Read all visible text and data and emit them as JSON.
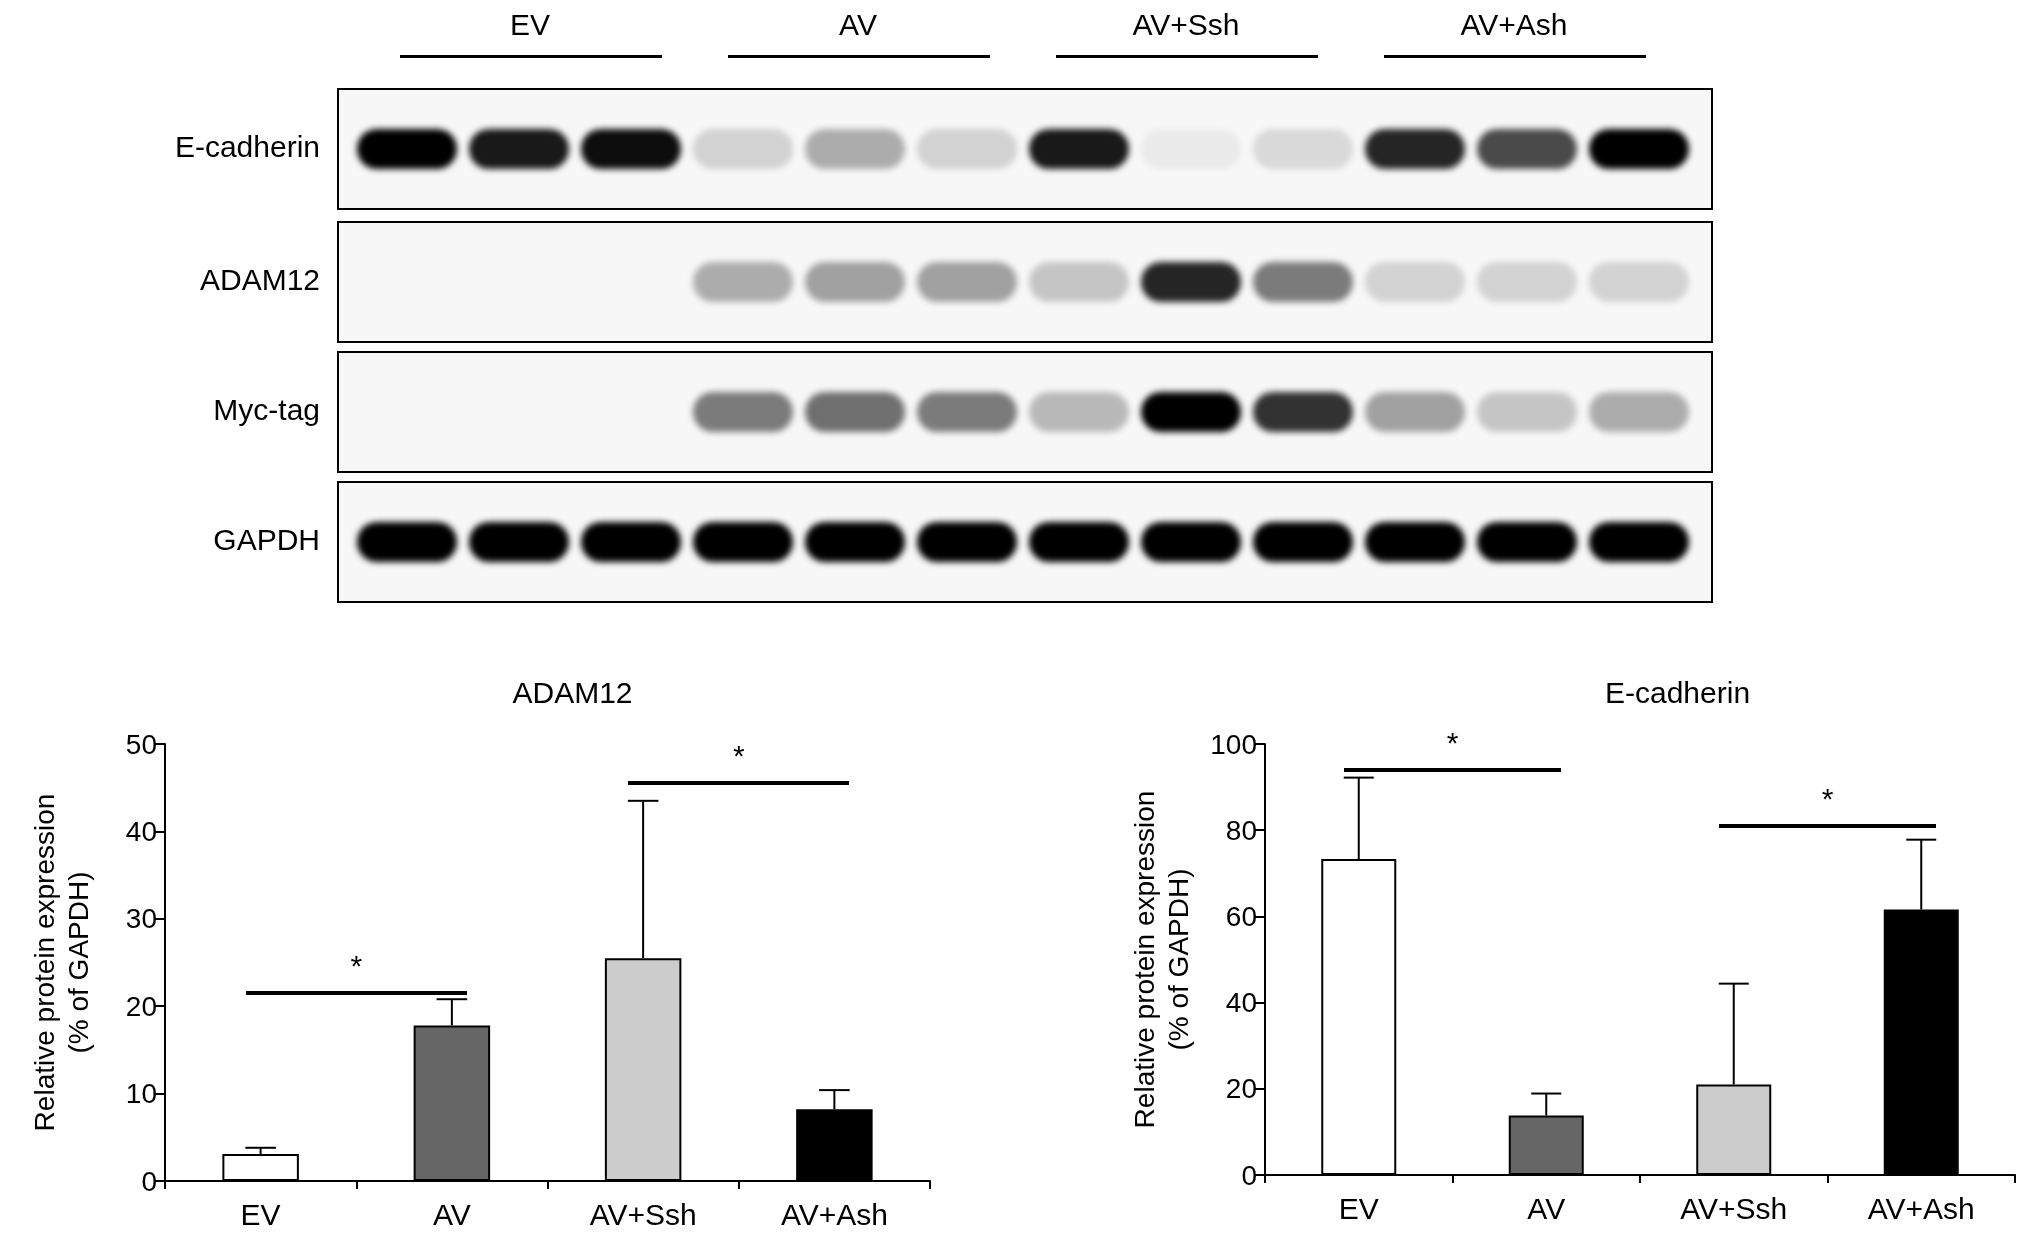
{
  "chart_data": [
    {
      "type": "other",
      "annotations": [
        "EV",
        "AV",
        "AV+Ssh",
        "AV+Ash",
        "E-cadherin",
        "ADAM12",
        "Myc-tag",
        "GAPDH"
      ]
    },
    {
      "type": "bar",
      "title": "ADAM12",
      "ylabel": "Relative protein expression\n(% of GAPDH)",
      "categories": [
        "EV",
        "AV",
        "AV+Ssh",
        "AV+Ash"
      ],
      "values": [
        3.1,
        17.8,
        25.5,
        8.2
      ],
      "colors": [
        "#ffffff",
        "#666666",
        "#cccccc",
        "#000000"
      ],
      "errors": [
        [
          3.1,
          3.8
        ],
        [
          17.8,
          20.8
        ],
        [
          25.5,
          43.5
        ],
        [
          8.2,
          10.4
        ]
      ],
      "ylim": [
        0,
        50
      ],
      "yticks": [
        0,
        10,
        20,
        30,
        40,
        50
      ],
      "grid": false,
      "annotations": [
        "*",
        "*"
      ]
    },
    {
      "type": "bar",
      "title": "E-cadherin",
      "ylabel": "Relative protein expression\n(% of GAPDH)",
      "categories": [
        "EV",
        "AV",
        "AV+Ssh",
        "AV+Ash"
      ],
      "values": [
        73.3,
        13.8,
        21.0,
        61.6
      ],
      "colors": [
        "#ffffff",
        "#666666",
        "#cccccc",
        "#000000"
      ],
      "errors": [
        [
          73.3,
          92.2
        ],
        [
          13.8,
          18.9
        ],
        [
          21.0,
          44.4
        ],
        [
          61.6,
          77.8
        ]
      ],
      "ylim": [
        0,
        100
      ],
      "yticks": [
        0,
        20,
        40,
        60,
        80,
        100
      ],
      "grid": false,
      "annotations": [
        "*",
        "*"
      ]
    }
  ]
}
